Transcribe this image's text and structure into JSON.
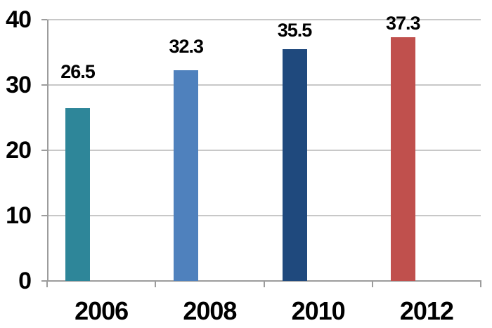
{
  "chart_data": {
    "type": "bar",
    "categories": [
      "2006",
      "2008",
      "2010",
      "2012"
    ],
    "values": [
      26.5,
      32.3,
      35.5,
      37.3
    ],
    "data_labels": [
      "26.5",
      "32.3",
      "35.5",
      "37.3"
    ],
    "series_colors": [
      "#2E8699",
      "#4F81BD",
      "#1F497D",
      "#C0504D"
    ],
    "title": "",
    "xlabel": "",
    "ylabel": "",
    "ylim": [
      0,
      40
    ],
    "ytick_labels": [
      "0",
      "10",
      "20",
      "30",
      "40"
    ],
    "grid": "horizontal",
    "legend": "none",
    "colors": {
      "gridline": "#C8C8C8",
      "axis": "#9C9C9C",
      "text": "#000000",
      "background": "#FFFFFF"
    }
  }
}
